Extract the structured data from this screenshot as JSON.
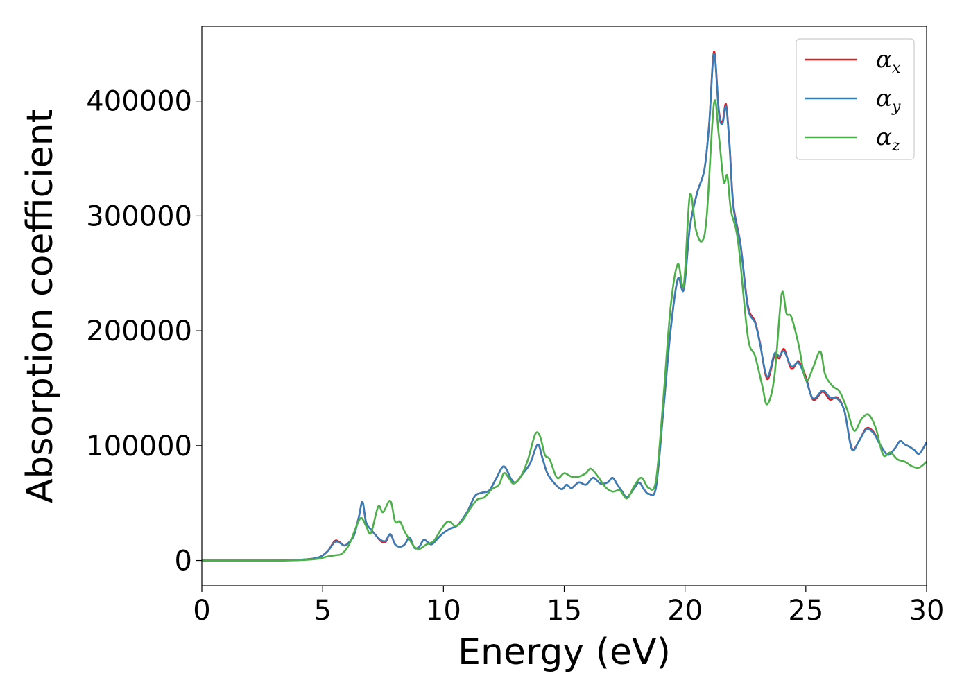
{
  "chart_data": {
    "type": "line",
    "title": "",
    "xlabel": "Energy (eV)",
    "ylabel": "Absorption coefficient",
    "xlim": [
      0,
      30
    ],
    "ylim": [
      -22000,
      465000
    ],
    "xticks": [
      0,
      5,
      10,
      15,
      20,
      25,
      30
    ],
    "xtick_labels": [
      "0",
      "5",
      "10",
      "15",
      "20",
      "25",
      "30"
    ],
    "yticks": [
      0,
      100000,
      200000,
      300000,
      400000
    ],
    "ytick_labels": [
      "0",
      "100000",
      "200000",
      "300000",
      "400000"
    ],
    "grid": false,
    "legend_position": "top-right",
    "series": [
      {
        "name": "α_x",
        "label_base": "α",
        "label_sub": "x",
        "color": "#e41a1c",
        "points": [
          [
            0,
            0
          ],
          [
            3,
            0
          ],
          [
            4,
            500
          ],
          [
            4.8,
            2500
          ],
          [
            5.2,
            8000
          ],
          [
            5.5,
            17000
          ],
          [
            5.7,
            16000
          ],
          [
            5.9,
            13000
          ],
          [
            6.1,
            16000
          ],
          [
            6.3,
            22000
          ],
          [
            6.5,
            38000
          ],
          [
            6.65,
            51000
          ],
          [
            6.8,
            33000
          ],
          [
            7.0,
            27000
          ],
          [
            7.2,
            22000
          ],
          [
            7.4,
            17000
          ],
          [
            7.6,
            16000
          ],
          [
            7.8,
            23000
          ],
          [
            8.0,
            14000
          ],
          [
            8.2,
            12000
          ],
          [
            8.4,
            14000
          ],
          [
            8.6,
            20000
          ],
          [
            8.8,
            11000
          ],
          [
            9.0,
            12000
          ],
          [
            9.2,
            18000
          ],
          [
            9.5,
            14000
          ],
          [
            9.8,
            20000
          ],
          [
            10.0,
            24000
          ],
          [
            10.3,
            28000
          ],
          [
            10.6,
            31000
          ],
          [
            11.0,
            43000
          ],
          [
            11.3,
            56000
          ],
          [
            11.6,
            59000
          ],
          [
            11.9,
            61000
          ],
          [
            12.2,
            72000
          ],
          [
            12.5,
            82000
          ],
          [
            12.8,
            71000
          ],
          [
            13.0,
            68000
          ],
          [
            13.3,
            76000
          ],
          [
            13.6,
            85000
          ],
          [
            13.9,
            101000
          ],
          [
            14.1,
            89000
          ],
          [
            14.3,
            76000
          ],
          [
            14.6,
            67000
          ],
          [
            14.9,
            62000
          ],
          [
            15.1,
            66000
          ],
          [
            15.3,
            63000
          ],
          [
            15.6,
            68000
          ],
          [
            15.9,
            66000
          ],
          [
            16.2,
            72000
          ],
          [
            16.5,
            67000
          ],
          [
            16.8,
            68000
          ],
          [
            17.0,
            72000
          ],
          [
            17.2,
            66000
          ],
          [
            17.4,
            60000
          ],
          [
            17.6,
            55000
          ],
          [
            17.9,
            63000
          ],
          [
            18.1,
            68000
          ],
          [
            18.3,
            62000
          ],
          [
            18.5,
            58000
          ],
          [
            18.8,
            64000
          ],
          [
            19.1,
            130000
          ],
          [
            19.4,
            200000
          ],
          [
            19.7,
            245000
          ],
          [
            19.95,
            236000
          ],
          [
            20.2,
            290000
          ],
          [
            20.5,
            320000
          ],
          [
            20.8,
            340000
          ],
          [
            21.0,
            380000
          ],
          [
            21.2,
            443000
          ],
          [
            21.4,
            392000
          ],
          [
            21.55,
            382000
          ],
          [
            21.7,
            397000
          ],
          [
            21.85,
            360000
          ],
          [
            22.0,
            310000
          ],
          [
            22.3,
            275000
          ],
          [
            22.6,
            222000
          ],
          [
            22.9,
            208000
          ],
          [
            23.1,
            190000
          ],
          [
            23.4,
            158000
          ],
          [
            23.7,
            178000
          ],
          [
            23.9,
            176000
          ],
          [
            24.1,
            184000
          ],
          [
            24.4,
            167000
          ],
          [
            24.7,
            173000
          ],
          [
            25.0,
            160000
          ],
          [
            25.3,
            140000
          ],
          [
            25.7,
            147000
          ],
          [
            26.0,
            140000
          ],
          [
            26.3,
            142000
          ],
          [
            26.6,
            130000
          ],
          [
            26.9,
            98000
          ],
          [
            27.2,
            104000
          ],
          [
            27.5,
            115000
          ],
          [
            27.8,
            112000
          ],
          [
            28.1,
            100000
          ],
          [
            28.4,
            92000
          ],
          [
            28.7,
            98000
          ],
          [
            28.9,
            104000
          ],
          [
            29.1,
            101000
          ],
          [
            29.3,
            99000
          ],
          [
            29.5,
            96000
          ],
          [
            29.7,
            93000
          ],
          [
            30.0,
            103000
          ]
        ]
      },
      {
        "name": "α_y",
        "label_base": "α",
        "label_sub": "y",
        "color": "#377eb8",
        "points": [
          [
            0,
            0
          ],
          [
            3,
            0
          ],
          [
            4,
            500
          ],
          [
            4.8,
            2500
          ],
          [
            5.2,
            8000
          ],
          [
            5.5,
            16000
          ],
          [
            5.7,
            15500
          ],
          [
            5.9,
            13000
          ],
          [
            6.1,
            16000
          ],
          [
            6.3,
            22000
          ],
          [
            6.5,
            38000
          ],
          [
            6.65,
            51000
          ],
          [
            6.8,
            33000
          ],
          [
            7.0,
            27000
          ],
          [
            7.2,
            22000
          ],
          [
            7.4,
            18000
          ],
          [
            7.6,
            17000
          ],
          [
            7.8,
            23000
          ],
          [
            8.0,
            14000
          ],
          [
            8.2,
            12000
          ],
          [
            8.4,
            14000
          ],
          [
            8.6,
            20000
          ],
          [
            8.8,
            11000
          ],
          [
            9.0,
            12000
          ],
          [
            9.2,
            18000
          ],
          [
            9.5,
            14000
          ],
          [
            9.8,
            20000
          ],
          [
            10.0,
            24000
          ],
          [
            10.3,
            28000
          ],
          [
            10.6,
            31000
          ],
          [
            11.0,
            43000
          ],
          [
            11.3,
            56000
          ],
          [
            11.6,
            59000
          ],
          [
            11.9,
            61000
          ],
          [
            12.2,
            72000
          ],
          [
            12.5,
            82000
          ],
          [
            12.8,
            71000
          ],
          [
            13.0,
            68000
          ],
          [
            13.3,
            76000
          ],
          [
            13.6,
            85000
          ],
          [
            13.9,
            101000
          ],
          [
            14.1,
            89000
          ],
          [
            14.3,
            76000
          ],
          [
            14.6,
            67000
          ],
          [
            14.9,
            62000
          ],
          [
            15.1,
            66000
          ],
          [
            15.3,
            63000
          ],
          [
            15.6,
            68000
          ],
          [
            15.9,
            66000
          ],
          [
            16.2,
            72000
          ],
          [
            16.5,
            67000
          ],
          [
            16.8,
            68000
          ],
          [
            17.0,
            72000
          ],
          [
            17.2,
            66000
          ],
          [
            17.4,
            60000
          ],
          [
            17.6,
            55000
          ],
          [
            17.9,
            63000
          ],
          [
            18.1,
            68000
          ],
          [
            18.3,
            62000
          ],
          [
            18.5,
            58000
          ],
          [
            18.8,
            64000
          ],
          [
            19.1,
            130000
          ],
          [
            19.4,
            200000
          ],
          [
            19.7,
            245000
          ],
          [
            19.95,
            236000
          ],
          [
            20.2,
            290000
          ],
          [
            20.5,
            320000
          ],
          [
            20.8,
            340000
          ],
          [
            21.0,
            380000
          ],
          [
            21.2,
            441000
          ],
          [
            21.4,
            390000
          ],
          [
            21.55,
            380000
          ],
          [
            21.7,
            395000
          ],
          [
            21.85,
            358000
          ],
          [
            22.0,
            308000
          ],
          [
            22.3,
            274000
          ],
          [
            22.6,
            220000
          ],
          [
            22.9,
            207000
          ],
          [
            23.1,
            189000
          ],
          [
            23.4,
            160000
          ],
          [
            23.7,
            180000
          ],
          [
            23.9,
            178000
          ],
          [
            24.1,
            182000
          ],
          [
            24.4,
            169000
          ],
          [
            24.7,
            172000
          ],
          [
            25.0,
            158000
          ],
          [
            25.3,
            141000
          ],
          [
            25.7,
            148000
          ],
          [
            26.0,
            142000
          ],
          [
            26.3,
            141000
          ],
          [
            26.6,
            130000
          ],
          [
            26.9,
            97000
          ],
          [
            27.2,
            104000
          ],
          [
            27.5,
            114000
          ],
          [
            27.8,
            111000
          ],
          [
            28.1,
            100000
          ],
          [
            28.4,
            92000
          ],
          [
            28.7,
            98000
          ],
          [
            28.9,
            104000
          ],
          [
            29.1,
            101000
          ],
          [
            29.3,
            99000
          ],
          [
            29.5,
            96000
          ],
          [
            29.7,
            93000
          ],
          [
            30.0,
            103000
          ]
        ]
      },
      {
        "name": "α_z",
        "label_base": "α",
        "label_sub": "z",
        "color": "#4daf4a",
        "points": [
          [
            0,
            0
          ],
          [
            3,
            0
          ],
          [
            4,
            300
          ],
          [
            4.8,
            1500
          ],
          [
            5.2,
            3500
          ],
          [
            5.5,
            4500
          ],
          [
            5.8,
            6000
          ],
          [
            6.1,
            14000
          ],
          [
            6.4,
            30000
          ],
          [
            6.6,
            37000
          ],
          [
            6.8,
            30000
          ],
          [
            7.0,
            24000
          ],
          [
            7.3,
            47000
          ],
          [
            7.5,
            42000
          ],
          [
            7.8,
            52000
          ],
          [
            8.0,
            34000
          ],
          [
            8.2,
            34000
          ],
          [
            8.4,
            25000
          ],
          [
            8.6,
            18000
          ],
          [
            8.8,
            12000
          ],
          [
            9.0,
            10000
          ],
          [
            9.3,
            14000
          ],
          [
            9.6,
            17000
          ],
          [
            9.9,
            27000
          ],
          [
            10.2,
            34000
          ],
          [
            10.5,
            30000
          ],
          [
            10.8,
            35000
          ],
          [
            11.1,
            45000
          ],
          [
            11.4,
            53000
          ],
          [
            11.7,
            55000
          ],
          [
            12.0,
            62000
          ],
          [
            12.3,
            66000
          ],
          [
            12.5,
            76000
          ],
          [
            12.7,
            72000
          ],
          [
            12.9,
            67000
          ],
          [
            13.2,
            73000
          ],
          [
            13.5,
            88000
          ],
          [
            13.8,
            110000
          ],
          [
            14.0,
            108000
          ],
          [
            14.2,
            92000
          ],
          [
            14.4,
            88000
          ],
          [
            14.7,
            72000
          ],
          [
            15.0,
            76000
          ],
          [
            15.3,
            73000
          ],
          [
            15.6,
            73000
          ],
          [
            15.9,
            76000
          ],
          [
            16.1,
            80000
          ],
          [
            16.4,
            73000
          ],
          [
            16.7,
            64000
          ],
          [
            17.0,
            60000
          ],
          [
            17.3,
            61000
          ],
          [
            17.6,
            54000
          ],
          [
            17.9,
            65000
          ],
          [
            18.2,
            72000
          ],
          [
            18.5,
            63000
          ],
          [
            18.8,
            70000
          ],
          [
            19.1,
            140000
          ],
          [
            19.4,
            220000
          ],
          [
            19.7,
            258000
          ],
          [
            19.95,
            240000
          ],
          [
            20.2,
            318000
          ],
          [
            20.45,
            288000
          ],
          [
            20.7,
            278000
          ],
          [
            20.9,
            300000
          ],
          [
            21.2,
            398000
          ],
          [
            21.4,
            370000
          ],
          [
            21.6,
            330000
          ],
          [
            21.75,
            335000
          ],
          [
            21.9,
            305000
          ],
          [
            22.2,
            277000
          ],
          [
            22.6,
            195000
          ],
          [
            22.9,
            178000
          ],
          [
            23.2,
            152000
          ],
          [
            23.4,
            136000
          ],
          [
            23.7,
            160000
          ],
          [
            24.0,
            232000
          ],
          [
            24.2,
            215000
          ],
          [
            24.4,
            212000
          ],
          [
            24.7,
            188000
          ],
          [
            25.0,
            157000
          ],
          [
            25.3,
            168000
          ],
          [
            25.6,
            182000
          ],
          [
            25.8,
            162000
          ],
          [
            26.1,
            152000
          ],
          [
            26.4,
            147000
          ],
          [
            26.7,
            132000
          ],
          [
            27.0,
            113000
          ],
          [
            27.3,
            123000
          ],
          [
            27.6,
            127000
          ],
          [
            27.9,
            115000
          ],
          [
            28.2,
            92000
          ],
          [
            28.5,
            94000
          ],
          [
            28.8,
            88000
          ],
          [
            29.1,
            86000
          ],
          [
            29.4,
            82000
          ],
          [
            29.7,
            81000
          ],
          [
            30.0,
            86000
          ]
        ]
      }
    ]
  }
}
